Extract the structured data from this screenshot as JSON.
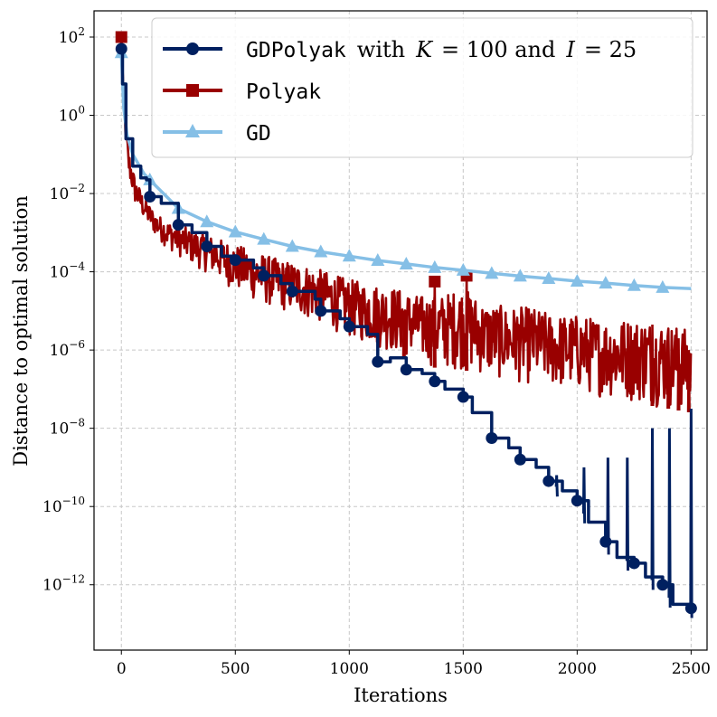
{
  "chart_data": {
    "type": "line",
    "xlabel": "Iterations",
    "ylabel": "Distance to optimal solution",
    "xlim": [
      -120,
      2570
    ],
    "ylim_log10": [
      -13.67,
      2.67
    ],
    "yscale": "log",
    "grid": true,
    "legend_position": "top-right",
    "x_ticks": [
      0,
      500,
      1000,
      1500,
      2000,
      2500
    ],
    "y_ticks": [
      {
        "exp": 2,
        "base": "10",
        "power": "2"
      },
      {
        "exp": 0,
        "base": "10",
        "power": "0"
      },
      {
        "exp": -2,
        "base": "10",
        "power": "−2"
      },
      {
        "exp": -4,
        "base": "10",
        "power": "−4"
      },
      {
        "exp": -6,
        "base": "10",
        "power": "−6"
      },
      {
        "exp": -8,
        "base": "10",
        "power": "−8"
      },
      {
        "exp": -10,
        "base": "10",
        "power": "−10"
      },
      {
        "exp": -12,
        "base": "10",
        "power": "−12"
      }
    ],
    "series": [
      {
        "key": "gd",
        "color": "#85bfe6",
        "marker": "triangle",
        "legend": {
          "mono": "GD"
        },
        "points": [
          [
            0,
            1.6
          ],
          [
            10,
            0.2
          ],
          [
            25,
            -0.5
          ],
          [
            50,
            -1.0
          ],
          [
            100,
            -1.5
          ],
          [
            150,
            -1.8
          ],
          [
            250,
            -2.38
          ],
          [
            375,
            -2.72
          ],
          [
            500,
            -2.98
          ],
          [
            625,
            -3.17
          ],
          [
            750,
            -3.35
          ],
          [
            875,
            -3.49
          ],
          [
            1000,
            -3.6
          ],
          [
            1125,
            -3.71
          ],
          [
            1250,
            -3.8
          ],
          [
            1375,
            -3.89
          ],
          [
            1500,
            -3.96
          ],
          [
            1625,
            -4.04
          ],
          [
            1750,
            -4.11
          ],
          [
            1875,
            -4.17
          ],
          [
            2000,
            -4.24
          ],
          [
            2125,
            -4.29
          ],
          [
            2250,
            -4.35
          ],
          [
            2375,
            -4.4
          ],
          [
            2500,
            -4.43
          ]
        ],
        "marker_x": [
          0,
          125,
          250,
          375,
          500,
          625,
          750,
          875,
          1000,
          1125,
          1250,
          1375,
          1500,
          1625,
          1750,
          1875,
          2000,
          2125,
          2250,
          2375
        ]
      },
      {
        "key": "polyak",
        "color": "#990000",
        "marker": "square",
        "legend": {
          "mono": "Polyak"
        },
        "band": [
          [
            0,
            2.0,
            2.0
          ],
          [
            10,
            0.0,
            0.6
          ],
          [
            30,
            -1.6,
            -0.8
          ],
          [
            60,
            -2.3,
            -1.6
          ],
          [
            100,
            -2.7,
            -2.1
          ],
          [
            150,
            -3.1,
            -2.5
          ],
          [
            200,
            -3.4,
            -2.7
          ],
          [
            300,
            -3.8,
            -2.9
          ],
          [
            400,
            -4.1,
            -3.1
          ],
          [
            500,
            -4.5,
            -3.3
          ],
          [
            600,
            -4.8,
            -3.5
          ],
          [
            700,
            -5.0,
            -3.7
          ],
          [
            800,
            -5.2,
            -3.8
          ],
          [
            900,
            -5.4,
            -4.0
          ],
          [
            1000,
            -5.7,
            -4.2
          ],
          [
            1100,
            -5.9,
            -4.3
          ],
          [
            1200,
            -6.1,
            -4.4
          ],
          [
            1300,
            -6.3,
            -4.6
          ],
          [
            1400,
            -6.5,
            -4.6
          ],
          [
            1500,
            -6.5,
            -4.4
          ],
          [
            1600,
            -6.7,
            -4.8
          ],
          [
            1700,
            -6.8,
            -4.9
          ],
          [
            1800,
            -6.9,
            -4.9
          ],
          [
            1900,
            -7.0,
            -5.1
          ],
          [
            2000,
            -7.1,
            -5.1
          ],
          [
            2100,
            -7.2,
            -5.2
          ],
          [
            2200,
            -7.3,
            -5.2
          ],
          [
            2300,
            -7.4,
            -5.2
          ],
          [
            2400,
            -7.5,
            -5.3
          ],
          [
            2500,
            -7.6,
            -5.5
          ]
        ],
        "spikes": [
          [
            1375,
            -4.25
          ],
          [
            1515,
            -4.1
          ],
          [
            1240,
            -5.0
          ],
          [
            2330,
            -5.35
          ],
          [
            2400,
            -5.6
          ],
          [
            2445,
            -5.7
          ],
          [
            2490,
            -6.0
          ]
        ],
        "markers": [
          [
            0,
            2.0
          ],
          [
            1375,
            -4.25
          ],
          [
            1515,
            -4.1
          ]
        ]
      },
      {
        "key": "gdpolyak",
        "color": "#002060",
        "marker": "circle",
        "legend": {
          "mono": "GDPolyak",
          "serif1": "with",
          "math1": "K",
          "serif2": "= 100 and",
          "math2": "I",
          "serif3": "= 25"
        },
        "steps": [
          [
            0,
            1.7
          ],
          [
            5,
            0.8
          ],
          [
            20,
            -0.6
          ],
          [
            50,
            -1.3
          ],
          [
            85,
            -1.6
          ],
          [
            110,
            -1.65
          ],
          [
            125,
            -2.08
          ],
          [
            175,
            -2.25
          ],
          [
            250,
            -2.8
          ],
          [
            310,
            -3.0
          ],
          [
            375,
            -3.35
          ],
          [
            440,
            -3.6
          ],
          [
            500,
            -3.7
          ],
          [
            580,
            -3.9
          ],
          [
            625,
            -4.1
          ],
          [
            700,
            -4.3
          ],
          [
            750,
            -4.5
          ],
          [
            850,
            -4.7
          ],
          [
            875,
            -5.0
          ],
          [
            960,
            -5.2
          ],
          [
            1000,
            -5.4
          ],
          [
            1080,
            -5.6
          ],
          [
            1125,
            -6.3
          ],
          [
            1180,
            -6.2
          ],
          [
            1250,
            -6.5
          ],
          [
            1320,
            -6.6
          ],
          [
            1375,
            -6.8
          ],
          [
            1420,
            -7.0
          ],
          [
            1500,
            -7.2
          ],
          [
            1540,
            -7.6
          ],
          [
            1625,
            -8.25
          ],
          [
            1700,
            -8.5
          ],
          [
            1750,
            -8.8
          ],
          [
            1820,
            -9.0
          ],
          [
            1875,
            -9.35
          ],
          [
            1935,
            -9.6
          ],
          [
            2000,
            -9.85
          ],
          [
            2050,
            -10.4
          ],
          [
            2125,
            -10.9
          ],
          [
            2175,
            -11.3
          ],
          [
            2250,
            -11.45
          ],
          [
            2300,
            -11.8
          ],
          [
            2375,
            -12.0
          ],
          [
            2420,
            -12.5
          ],
          [
            2500,
            -12.6
          ],
          [
            2520,
            -12.6
          ]
        ],
        "spikes": [
          [
            1910,
            -9.2
          ],
          [
            2030,
            -9.0
          ],
          [
            2135,
            -8.75
          ],
          [
            2220,
            -8.75
          ],
          [
            2330,
            -8.0
          ],
          [
            2405,
            -8.0
          ],
          [
            2500,
            -7.5
          ]
        ],
        "markers": [
          [
            0,
            1.7
          ],
          [
            125,
            -2.08
          ],
          [
            250,
            -2.8
          ],
          [
            375,
            -3.35
          ],
          [
            500,
            -3.7
          ],
          [
            625,
            -4.1
          ],
          [
            750,
            -4.5
          ],
          [
            875,
            -5.0
          ],
          [
            1000,
            -5.4
          ],
          [
            1125,
            -6.3
          ],
          [
            1250,
            -6.5
          ],
          [
            1375,
            -6.8
          ],
          [
            1500,
            -7.2
          ],
          [
            1625,
            -8.25
          ],
          [
            1750,
            -8.8
          ],
          [
            1875,
            -9.35
          ],
          [
            2000,
            -9.85
          ],
          [
            2125,
            -10.9
          ],
          [
            2250,
            -11.45
          ],
          [
            2375,
            -12.0
          ],
          [
            2500,
            -12.6
          ]
        ]
      }
    ],
    "legend_order": [
      "gdpolyak",
      "polyak",
      "gd"
    ]
  }
}
